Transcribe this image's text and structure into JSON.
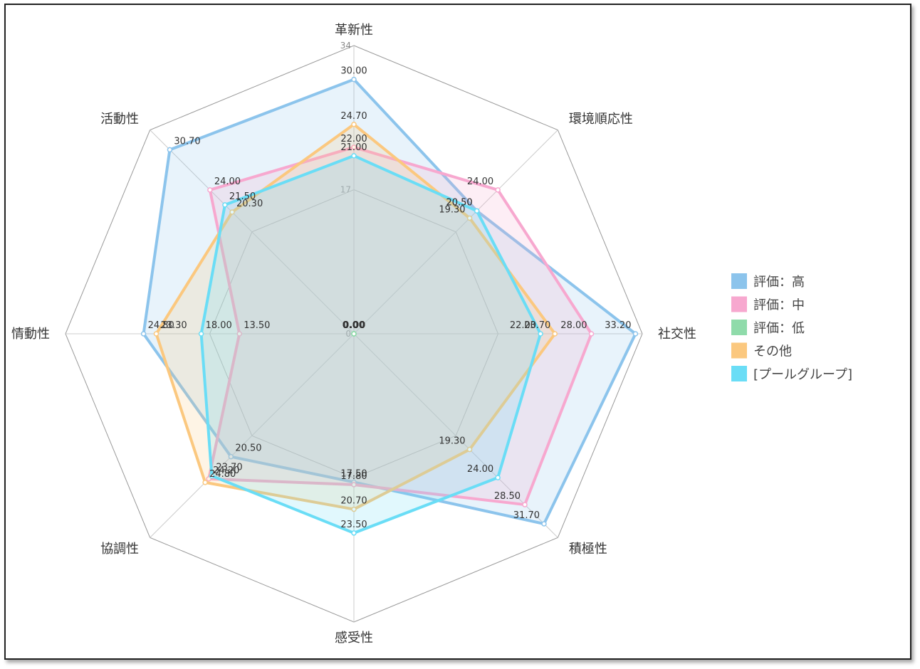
{
  "chart_data": {
    "type": "radar",
    "axes": [
      "革新性",
      "環境順応性",
      "社交性",
      "積極性",
      "感受性",
      "協調性",
      "情動性",
      "活動性"
    ],
    "range": [
      0,
      34
    ],
    "ticks": [
      0,
      17,
      34
    ],
    "series": [
      {
        "name": "評価：高",
        "color": "#8CC4EC",
        "values": [
          30.0,
          20.5,
          33.2,
          31.7,
          17.5,
          20.5,
          24.8,
          30.7
        ]
      },
      {
        "name": "評価：中",
        "color": "#F7A8CF",
        "values": [
          22.0,
          24.0,
          28.0,
          28.5,
          17.8,
          24.2,
          13.5,
          24.0
        ]
      },
      {
        "name": "評価：低",
        "color": "#8FDBAA",
        "values": [
          0.0,
          0.0,
          0.0,
          0.0,
          0.0,
          0.0,
          0.0,
          0.0
        ]
      },
      {
        "name": "その他",
        "color": "#FBC87F",
        "values": [
          24.7,
          19.3,
          23.7,
          19.3,
          20.7,
          24.8,
          23.3,
          20.3
        ]
      },
      {
        "name": "[プールグループ]",
        "color": "#6ADDF6",
        "values": [
          21.0,
          20.5,
          22.0,
          24.0,
          23.5,
          23.7,
          18.0,
          21.5
        ]
      }
    ],
    "legend_position": "right"
  }
}
